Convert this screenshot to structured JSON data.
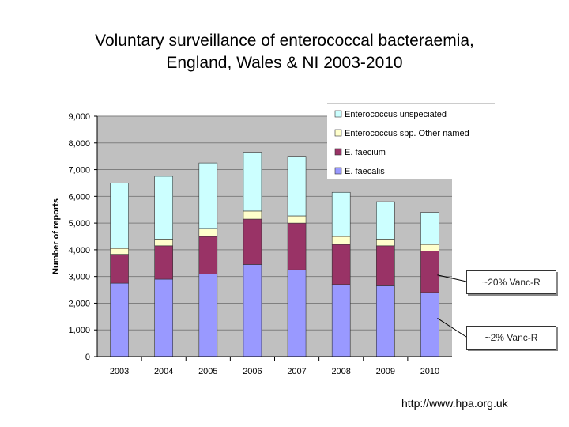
{
  "title": {
    "line1": "Voluntary surveillance of enterococcal bacteraemia,",
    "line2": "England, Wales & NI 2003-2010"
  },
  "chart_data": {
    "type": "bar",
    "stacked": true,
    "categories": [
      "2003",
      "2004",
      "2005",
      "2006",
      "2007",
      "2008",
      "2009",
      "2010"
    ],
    "series": [
      {
        "name": "E. faecalis",
        "color": "#9999ff",
        "values": [
          2750,
          2900,
          3100,
          3450,
          3250,
          2700,
          2650,
          2400
        ]
      },
      {
        "name": "E. faecium",
        "color": "#993366",
        "values": [
          1080,
          1250,
          1400,
          1700,
          1750,
          1500,
          1500,
          1550
        ]
      },
      {
        "name": "Enterococcus spp. Other named",
        "color": "#ffffcc",
        "values": [
          220,
          250,
          300,
          300,
          270,
          300,
          250,
          250
        ]
      },
      {
        "name": "Enterococcus unspeciated",
        "color": "#ccffff",
        "values": [
          2450,
          2350,
          2450,
          2200,
          2230,
          1650,
          1400,
          1200
        ]
      }
    ],
    "legend_order": [
      3,
      2,
      1,
      0
    ],
    "ylabel": "Number of reports",
    "ylim": [
      0,
      9000
    ],
    "yticks": [
      "0",
      "1,000",
      "2,000",
      "3,000",
      "4,000",
      "5,000",
      "6,000",
      "7,000",
      "8,000",
      "9,000"
    ],
    "grid": true,
    "legend_position": "top-right",
    "annotations": [
      {
        "text": "~20% Vanc-R",
        "target": "E. faecium",
        "category": "2010"
      },
      {
        "text": "~2% Vanc-R",
        "target": "E. faecalis",
        "category": "2010"
      }
    ]
  },
  "source": "http://www.hpa.org.uk"
}
